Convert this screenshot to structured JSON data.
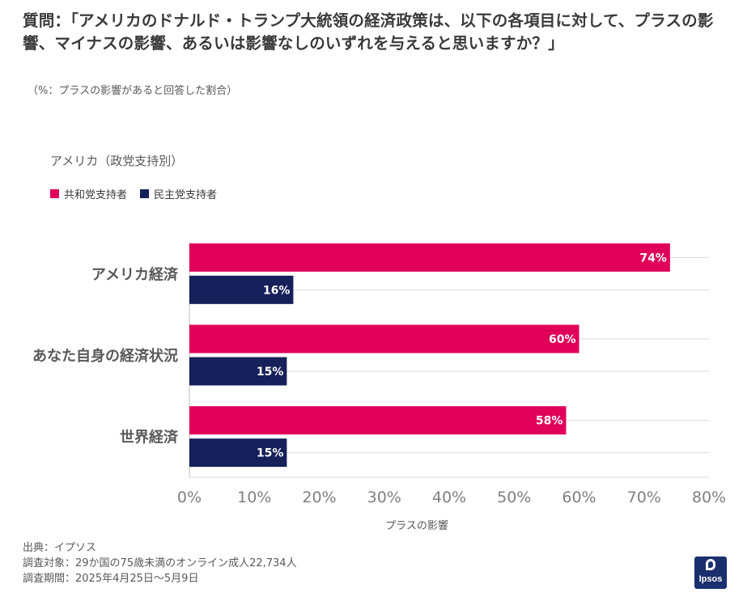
{
  "title": "質問：「アメリカのドナルド・トランプ大統領の経済政策は、以下の各項目に対して、プラスの影響、マイナスの影響、あるいは影響なしのいずれを与えると思いますか？」",
  "subtitle": "（%：プラスの影響があると回答した割合）",
  "region_label": "アメリカ（政党支持別）",
  "footer": {
    "source": "出典：イプソス",
    "target": "調査対象：29か国の75歳未満のオンライン成人22,734人",
    "period": "調査期間：2025年4月25日～5月9日"
  },
  "logo_text": "Ipsos",
  "colors": {
    "republican": "#e0005a",
    "democrat": "#16205a",
    "axis_text": "#808080",
    "grid": "#d9d9d9"
  },
  "chart_data": {
    "type": "bar",
    "orientation": "horizontal",
    "categories": [
      "アメリカ経済",
      "あなた自身の経済状況",
      "世界経済"
    ],
    "series": [
      {
        "name": "共和党支持者",
        "values": [
          74,
          60,
          58
        ]
      },
      {
        "name": "民主党支持者",
        "values": [
          16,
          15,
          15
        ]
      }
    ],
    "value_suffix": "%",
    "xlim": [
      0,
      80
    ],
    "xticks": [
      "0%",
      "10%",
      "20%",
      "30%",
      "40%",
      "50%",
      "60%",
      "70%",
      "80%"
    ],
    "xlabel": "プラスの影響",
    "legend_position": "top-left",
    "grid": true
  }
}
